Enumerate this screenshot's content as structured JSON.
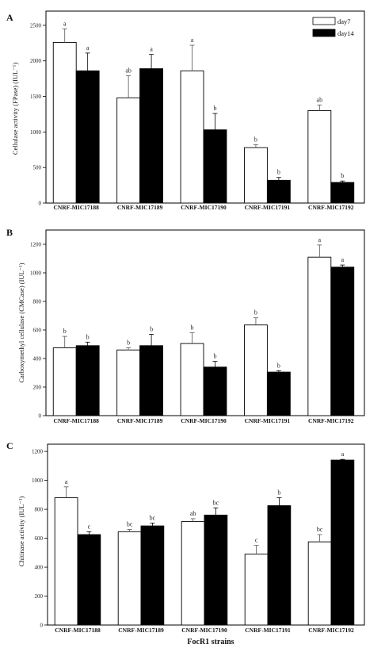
{
  "x_title": "FocR1 strains",
  "legend": [
    {
      "label": "day7",
      "color": "#ffffff"
    },
    {
      "label": "day14",
      "color": "#000000"
    }
  ],
  "chart_data": [
    {
      "type": "bar",
      "panel": "A",
      "ylabel": "Cellulase activity (FPase) (IUL⁻¹)",
      "ylim": [
        0,
        2700
      ],
      "yticks": [
        0,
        500,
        1000,
        1500,
        2000,
        2500
      ],
      "categories": [
        "CNRF-MIC17188",
        "CNRF-MIC17189",
        "CNRF-MIC17190",
        "CNRF-MIC17191",
        "CNRF-MIC17192"
      ],
      "series": [
        {
          "name": "day7",
          "values": [
            2260,
            1480,
            1860,
            780,
            1300
          ],
          "errors": [
            190,
            310,
            360,
            40,
            80
          ],
          "letters": [
            "a",
            "ab",
            "a",
            "b",
            "ab"
          ]
        },
        {
          "name": "day14",
          "values": [
            1860,
            1890,
            1030,
            320,
            290
          ],
          "errors": [
            250,
            200,
            230,
            40,
            20
          ],
          "letters": [
            "a",
            "a",
            "b",
            "b",
            "b"
          ]
        }
      ],
      "legend_position": "top-right"
    },
    {
      "type": "bar",
      "panel": "B",
      "ylabel": "Carboxymethyl cellulase (CMCase) (IUL⁻¹)",
      "ylim": [
        0,
        1300
      ],
      "yticks": [
        0,
        200,
        400,
        600,
        800,
        1000,
        1200
      ],
      "categories": [
        "CNRF-MIC17188",
        "CNRF-MIC17189",
        "CNRF-MIC17190",
        "CNRF-MIC17191",
        "CNRF-MIC17192"
      ],
      "series": [
        {
          "name": "day7",
          "values": [
            475,
            460,
            505,
            635,
            1110
          ],
          "errors": [
            80,
            15,
            75,
            50,
            85
          ],
          "letters": [
            "b",
            "b",
            "b",
            "b",
            "a"
          ]
        },
        {
          "name": "day14",
          "values": [
            490,
            490,
            340,
            305,
            1040
          ],
          "errors": [
            25,
            80,
            40,
            10,
            15
          ],
          "letters": [
            "b",
            "b",
            "b",
            "b",
            "a"
          ]
        }
      ]
    },
    {
      "type": "bar",
      "panel": "C",
      "ylabel": "Chitinase activity (IUL⁻¹)",
      "ylim": [
        0,
        1250
      ],
      "yticks": [
        0,
        200,
        400,
        600,
        800,
        1000,
        1200
      ],
      "categories": [
        "CNRF-MIC17188",
        "CNRF-MIC17189",
        "CNRF-MIC17190",
        "CNRF-MIC17191",
        "CNRF-MIC17192"
      ],
      "series": [
        {
          "name": "day7",
          "values": [
            880,
            645,
            715,
            490,
            575
          ],
          "errors": [
            75,
            15,
            20,
            60,
            50
          ],
          "letters": [
            "a",
            "bc",
            "ab",
            "c",
            "bc"
          ]
        },
        {
          "name": "day14",
          "values": [
            625,
            685,
            760,
            825,
            1140
          ],
          "errors": [
            20,
            20,
            50,
            55,
            5
          ],
          "letters": [
            "c",
            "bc",
            "bc",
            "b",
            "a"
          ]
        }
      ]
    }
  ]
}
